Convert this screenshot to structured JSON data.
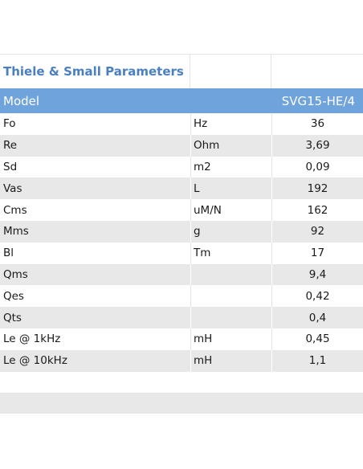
{
  "title": "Thiele & Small Parameters",
  "header": {
    "label": "Model",
    "unit": "",
    "value": "SVG15-HE/4"
  },
  "rows": [
    {
      "param": "Fo",
      "unit": "Hz",
      "value": "36"
    },
    {
      "param": "Re",
      "unit": "Ohm",
      "value": "3,69"
    },
    {
      "param": "Sd",
      "unit": "m2",
      "value": "0,09"
    },
    {
      "param": "Vas",
      "unit": "L",
      "value": "192"
    },
    {
      "param": "Cms",
      "unit": "uM/N",
      "value": "162"
    },
    {
      "param": "Mms",
      "unit": "g",
      "value": "92"
    },
    {
      "param": "Bl",
      "unit": "Tm",
      "value": "17"
    },
    {
      "param": "Qms",
      "unit": "",
      "value": "9,4"
    },
    {
      "param": "Qes",
      "unit": "",
      "value": "0,42"
    },
    {
      "param": "Qts",
      "unit": "",
      "value": "0,4"
    },
    {
      "param": "Le @ 1kHz",
      "unit": "mH",
      "value": "0,45"
    },
    {
      "param": "Le @ 10kHz",
      "unit": "mH",
      "value": "1,1"
    }
  ],
  "colors": {
    "title": "#4a7fc0",
    "header_bg": "#6fa3db",
    "shade_bg": "#e8e8e8"
  }
}
